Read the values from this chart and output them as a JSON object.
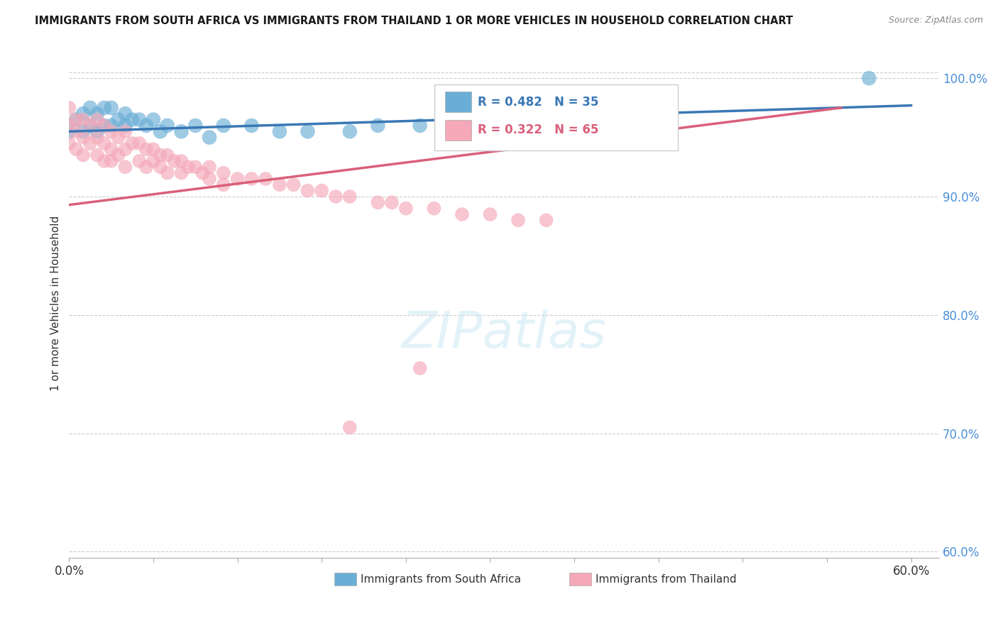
{
  "title": "IMMIGRANTS FROM SOUTH AFRICA VS IMMIGRANTS FROM THAILAND 1 OR MORE VEHICLES IN HOUSEHOLD CORRELATION CHART",
  "source": "Source: ZipAtlas.com",
  "ylabel": "1 or more Vehicles in Household",
  "xlim": [
    0.0,
    0.62
  ],
  "ylim": [
    0.595,
    1.025
  ],
  "y_ticks": [
    0.6,
    0.7,
    0.8,
    0.9,
    1.0
  ],
  "y_tick_labels": [
    "60.0%",
    "70.0%",
    "80.0%",
    "90.0%",
    "100.0%"
  ],
  "x_tick_labels": [
    "0.0%",
    "",
    "",
    "",
    "",
    "",
    "",
    "",
    "",
    "",
    "60.0%"
  ],
  "legend_blue_label": "Immigrants from South Africa",
  "legend_pink_label": "Immigrants from Thailand",
  "R_blue": 0.482,
  "N_blue": 35,
  "R_pink": 0.322,
  "N_pink": 65,
  "blue_color": "#6aaed6",
  "pink_color": "#f4a8b8",
  "blue_line_color": "#3a78b5",
  "pink_line_color": "#d9607a",
  "south_africa_x": [
    0.0,
    0.005,
    0.01,
    0.01,
    0.015,
    0.015,
    0.02,
    0.02,
    0.025,
    0.025,
    0.03,
    0.03,
    0.035,
    0.04,
    0.04,
    0.045,
    0.05,
    0.055,
    0.06,
    0.065,
    0.07,
    0.08,
    0.09,
    0.1,
    0.11,
    0.13,
    0.15,
    0.17,
    0.2,
    0.22,
    0.25,
    0.28,
    0.3,
    0.35,
    0.57
  ],
  "south_africa_y": [
    0.955,
    0.965,
    0.97,
    0.955,
    0.975,
    0.96,
    0.97,
    0.955,
    0.975,
    0.96,
    0.975,
    0.96,
    0.965,
    0.97,
    0.96,
    0.965,
    0.965,
    0.96,
    0.965,
    0.955,
    0.96,
    0.955,
    0.96,
    0.95,
    0.96,
    0.96,
    0.955,
    0.955,
    0.955,
    0.96,
    0.96,
    0.965,
    0.955,
    0.96,
    1.0
  ],
  "thailand_x": [
    0.0,
    0.0,
    0.0,
    0.005,
    0.005,
    0.005,
    0.01,
    0.01,
    0.01,
    0.015,
    0.015,
    0.02,
    0.02,
    0.02,
    0.025,
    0.025,
    0.025,
    0.03,
    0.03,
    0.03,
    0.035,
    0.035,
    0.04,
    0.04,
    0.04,
    0.045,
    0.05,
    0.05,
    0.055,
    0.055,
    0.06,
    0.06,
    0.065,
    0.065,
    0.07,
    0.07,
    0.075,
    0.08,
    0.08,
    0.085,
    0.09,
    0.095,
    0.1,
    0.1,
    0.11,
    0.11,
    0.12,
    0.13,
    0.14,
    0.15,
    0.16,
    0.17,
    0.18,
    0.19,
    0.2,
    0.22,
    0.23,
    0.24,
    0.26,
    0.28,
    0.3,
    0.32,
    0.34,
    0.25,
    0.2
  ],
  "thailand_y": [
    0.975,
    0.96,
    0.945,
    0.965,
    0.955,
    0.94,
    0.965,
    0.95,
    0.935,
    0.96,
    0.945,
    0.965,
    0.95,
    0.935,
    0.96,
    0.945,
    0.93,
    0.955,
    0.94,
    0.93,
    0.95,
    0.935,
    0.955,
    0.94,
    0.925,
    0.945,
    0.945,
    0.93,
    0.94,
    0.925,
    0.94,
    0.93,
    0.935,
    0.925,
    0.935,
    0.92,
    0.93,
    0.93,
    0.92,
    0.925,
    0.925,
    0.92,
    0.925,
    0.915,
    0.92,
    0.91,
    0.915,
    0.915,
    0.915,
    0.91,
    0.91,
    0.905,
    0.905,
    0.9,
    0.9,
    0.895,
    0.895,
    0.89,
    0.89,
    0.885,
    0.885,
    0.88,
    0.88,
    0.755,
    0.705
  ]
}
